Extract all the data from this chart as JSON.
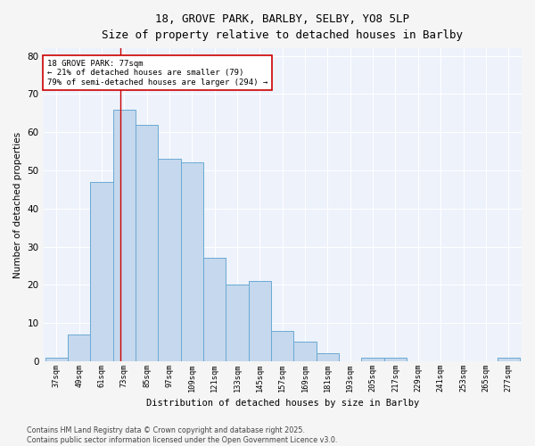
{
  "title_line1": "18, GROVE PARK, BARLBY, SELBY, YO8 5LP",
  "title_line2": "Size of property relative to detached houses in Barlby",
  "xlabel": "Distribution of detached houses by size in Barlby",
  "ylabel": "Number of detached properties",
  "bins": [
    37,
    49,
    61,
    73,
    85,
    97,
    109,
    121,
    133,
    145,
    157,
    169,
    181,
    193,
    205,
    217,
    229,
    241,
    253,
    265,
    277
  ],
  "counts": [
    1,
    7,
    47,
    66,
    62,
    53,
    52,
    27,
    20,
    21,
    8,
    5,
    2,
    0,
    1,
    1,
    0,
    0,
    0,
    0,
    1
  ],
  "bar_color": "#c5d8ed",
  "bar_edge_color": "#6aaad4",
  "red_line_x": 77,
  "annotation_text": "18 GROVE PARK: 77sqm\n← 21% of detached houses are smaller (79)\n79% of semi-detached houses are larger (294) →",
  "annotation_box_color": "#ffffff",
  "annotation_box_edge_color": "#cc0000",
  "ylim": [
    0,
    82
  ],
  "yticks": [
    0,
    10,
    20,
    30,
    40,
    50,
    60,
    70,
    80
  ],
  "background_color": "#edf2fb",
  "grid_color": "#ffffff",
  "footer_text": "Contains HM Land Registry data © Crown copyright and database right 2025.\nContains public sector information licensed under the Open Government Licence v3.0.",
  "bin_width": 12,
  "fig_width": 6.0,
  "fig_height": 5.0,
  "dpi": 100
}
